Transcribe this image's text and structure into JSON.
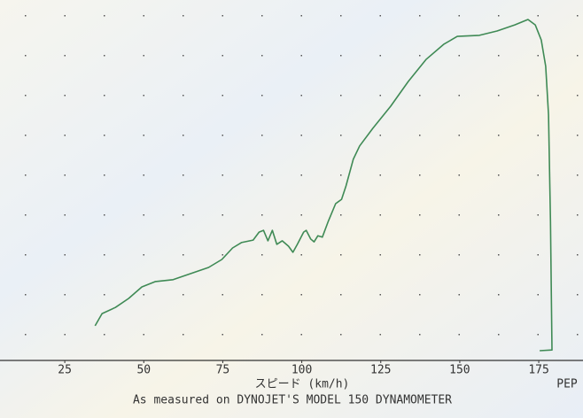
{
  "chart_data": {
    "type": "line",
    "x_label": "スピード (km/h)",
    "annotation": "As measured on DYNOJET'S MODEL 150 DYNAMOMETER",
    "corner_label": "PEP",
    "xlim": [
      4.5,
      189
    ],
    "ylim": [
      0,
      100
    ],
    "xticks": [
      25,
      50,
      75,
      100,
      125,
      150,
      175
    ],
    "series": [
      {
        "color": "#3f8a55",
        "x": [
          34.6,
          36.8,
          41.0,
          45.2,
          49.4,
          53.7,
          59.3,
          64.9,
          70.5,
          74.7,
          78.1,
          80.9,
          84.6,
          86.5,
          87.9,
          89.3,
          90.7,
          92.1,
          93.8,
          95.8,
          97.2,
          98.6,
          100.6,
          101.4,
          102.8,
          103.9,
          105.1,
          106.5,
          108.4,
          110.7,
          112.6,
          114.0,
          116.3,
          118.3,
          122.5,
          128.1,
          133.7,
          139.3,
          144.9,
          149.2,
          156.2,
          161.8,
          167.4,
          171.6,
          173.9,
          175.8,
          177.2,
          178.1,
          178.7,
          179.2,
          175.3
        ],
        "values": [
          9.6,
          13.0,
          14.7,
          17.2,
          20.4,
          21.9,
          22.4,
          24.1,
          25.8,
          28.0,
          31.2,
          32.7,
          33.4,
          35.6,
          36.1,
          33.2,
          36.1,
          32.2,
          33.2,
          31.7,
          30.0,
          32.2,
          35.6,
          36.1,
          33.7,
          32.9,
          34.6,
          34.2,
          38.6,
          43.5,
          44.7,
          48.4,
          55.8,
          59.5,
          64.4,
          70.5,
          77.4,
          83.5,
          87.7,
          89.9,
          90.2,
          91.4,
          93.1,
          94.6,
          93.1,
          88.9,
          81.6,
          68.1,
          38.6,
          2.9,
          2.7
        ]
      }
    ]
  }
}
